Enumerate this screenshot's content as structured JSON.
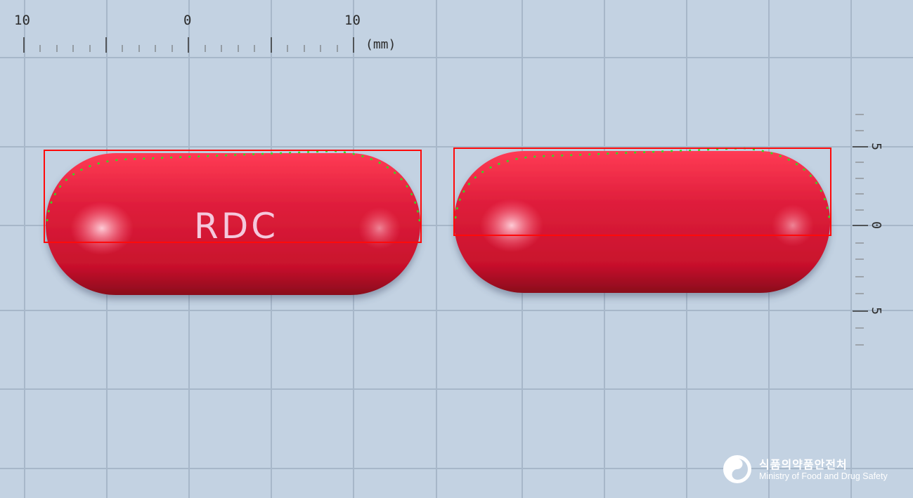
{
  "ruler_horizontal": {
    "labels": [
      "10",
      "0",
      "10"
    ],
    "unit": "(mm)"
  },
  "ruler_vertical": {
    "labels": [
      "5",
      "0",
      "5"
    ]
  },
  "pill_left": {
    "imprint": "RDC",
    "color": "#e01f3c"
  },
  "pill_right": {
    "color": "#e01f3c"
  },
  "annotation_colors": {
    "bbox": "#ff0a0a",
    "contour": "#33dd22"
  },
  "logo": {
    "korean": "식품의약품안전처",
    "english": "Ministry of Food and Drug Safety"
  }
}
